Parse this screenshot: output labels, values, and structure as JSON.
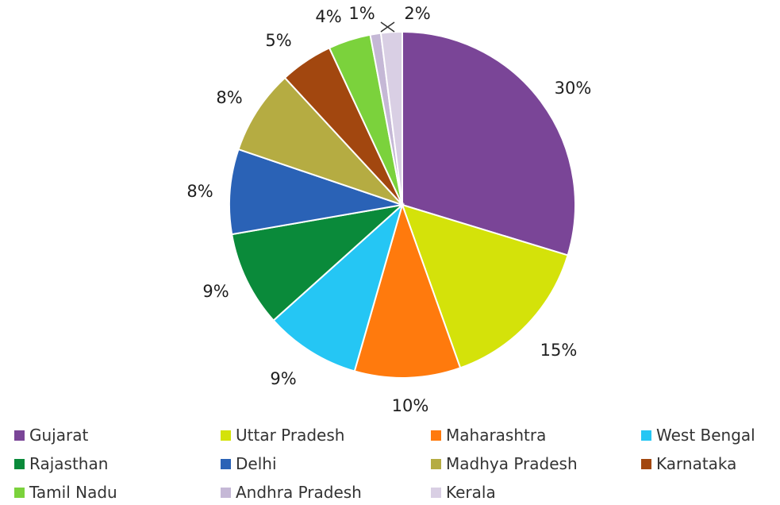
{
  "chart_data": {
    "type": "pie",
    "title": "",
    "slices": [
      {
        "name": "Gujarat",
        "value": 30,
        "label": "30%",
        "color": "#7a4597"
      },
      {
        "name": "Uttar Pradesh",
        "value": 15,
        "label": "15%",
        "color": "#d4e20a"
      },
      {
        "name": "Maharashtra",
        "value": 10,
        "label": "10%",
        "color": "#ff7a0d"
      },
      {
        "name": "West Bengal",
        "value": 9,
        "label": "9%",
        "color": "#25c6f4"
      },
      {
        "name": "Rajasthan",
        "value": 9,
        "label": "9%",
        "color": "#0a8a3a"
      },
      {
        "name": "Delhi",
        "value": 8,
        "label": "8%",
        "color": "#2a62b6"
      },
      {
        "name": "Madhya Pradesh",
        "value": 8,
        "label": "8%",
        "color": "#b5ac42"
      },
      {
        "name": "Karnataka",
        "value": 5,
        "label": "5%",
        "color": "#a2470f"
      },
      {
        "name": "Tamil Nadu",
        "value": 4,
        "label": "4%",
        "color": "#7bd23c"
      },
      {
        "name": "Andhra Pradesh",
        "value": 1,
        "label": "1%",
        "color": "#c5b8d6"
      },
      {
        "name": "Kerala",
        "value": 2,
        "label": "2%",
        "color": "#d9cfe4"
      }
    ],
    "legend": {
      "placement": "bottom"
    }
  }
}
